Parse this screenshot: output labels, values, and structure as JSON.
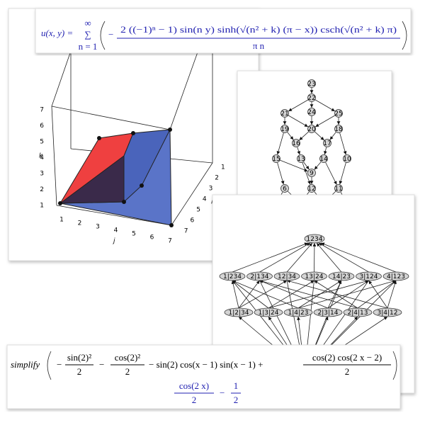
{
  "pde_solution": {
    "lhs": "u(x, y) =",
    "sum_symbol": "∑",
    "sum_upper": "∞",
    "sum_lower": "n = 1",
    "sign": "−",
    "numerator": "2 ((−1)ⁿ − 1) sin(n y) sinh(√(n² + k) (π − x)) csch(√(n² + k) π)",
    "denominator": "π n"
  },
  "plot3d": {
    "axis_labels": {
      "k": "k",
      "j": "j",
      "i": "i"
    },
    "k_ticks": [
      1,
      2,
      3,
      4,
      5,
      6,
      7
    ],
    "j_ticks": [
      1,
      2,
      3,
      4,
      5,
      6,
      7
    ],
    "i_ticks": [
      1,
      2,
      3,
      4,
      5,
      6,
      7
    ]
  },
  "digraph": {
    "nodes": [
      "23",
      "22",
      "24",
      "21",
      "25",
      "20",
      "19",
      "18",
      "17",
      "16",
      "15",
      "13",
      "14",
      "10",
      "9",
      "6",
      "12",
      "11",
      "4",
      "5",
      "7",
      "8",
      "1",
      "2",
      "3"
    ]
  },
  "partition_lattice": {
    "top": "1234",
    "middle": [
      "1|234",
      "2|134",
      "12|34",
      "13|24",
      "14|23",
      "3|124",
      "4|123"
    ],
    "bottom": [
      "1|2|34",
      "1|3|24",
      "1|4|23",
      "2|3|14",
      "2|4|13",
      "3|4|12"
    ]
  },
  "simplify_example": {
    "command": "simplify",
    "term1_num": "sin(2)²",
    "term1_den": "2",
    "term2_num": "cos(2)²",
    "term2_den": "2",
    "middle": "− sin(2) cos(x − 1) sin(x − 1) +",
    "term3_num": "cos(2) cos(2 x − 2)",
    "term3_den": "2",
    "result_num": "cos(2 x)",
    "result_den": "2",
    "result_minus": "−",
    "result_const_num": "1",
    "result_const_den": "2"
  }
}
